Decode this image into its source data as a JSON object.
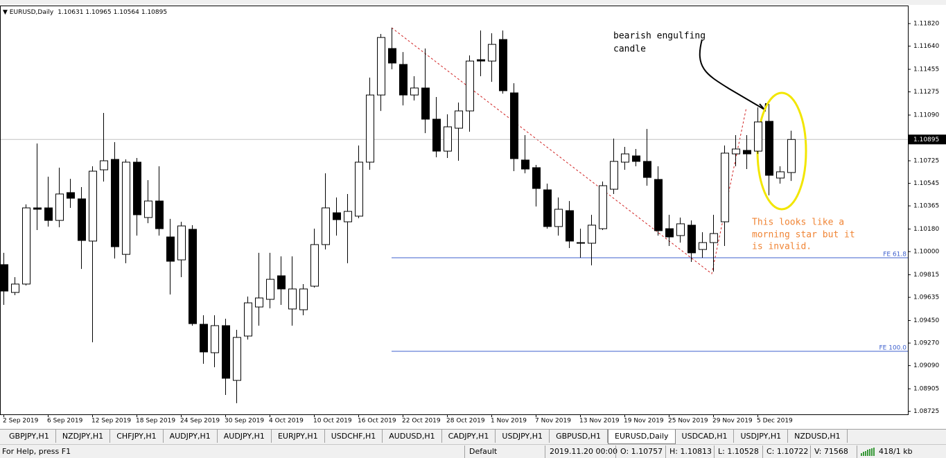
{
  "chart_data": {
    "type": "candlestick",
    "title": "EURUSD,Daily",
    "x": [
      "2 Sep 2019",
      null,
      null,
      null,
      "6 Sep 2019",
      null,
      null,
      null,
      "12 Sep 2019",
      null,
      null,
      null,
      "18 Sep 2019",
      null,
      null,
      null,
      "24 Sep 2019",
      null,
      null,
      null,
      "30 Sep 2019",
      null,
      null,
      null,
      "4 Oct 2019",
      null,
      null,
      null,
      "10 Oct 2019",
      null,
      null,
      null,
      "16 Oct 2019",
      null,
      null,
      null,
      "22 Oct 2019",
      null,
      null,
      null,
      "28 Oct 2019",
      null,
      null,
      null,
      "1 Nov 2019",
      null,
      null,
      null,
      "7 Nov 2019",
      null,
      null,
      null,
      "13 Nov 2019",
      null,
      null,
      null,
      "19 Nov 2019",
      null,
      null,
      null,
      "25 Nov 2019",
      null,
      null,
      null,
      "29 Nov 2019",
      null,
      null,
      null,
      "5 Dec 2019",
      null,
      null,
      null
    ],
    "open": [
      1.09896,
      1.09674,
      1.09741,
      1.10349,
      1.10349,
      1.10249,
      1.10471,
      1.10421,
      1.10084,
      1.10653,
      1.10736,
      1.09978,
      1.10714,
      1.10272,
      1.10404,
      1.10117,
      1.09934,
      1.10178,
      1.0942,
      1.09193,
      1.09409,
      1.08972,
      1.09326,
      1.09558,
      1.09619,
      1.09807,
      1.09542,
      1.09536,
      1.09724,
      1.10056,
      1.1031,
      1.10238,
      1.10283,
      1.10714,
      1.1125,
      1.11621,
      1.11494,
      1.1125,
      1.11306,
      1.11057,
      1.10802,
      1.10985,
      1.11123,
      1.11532,
      1.11521,
      1.11693,
      1.11267,
      1.10731,
      1.1067,
      1.10493,
      1.102,
      1.10327,
      1.10072,
      1.10067,
      1.10183,
      1.10498,
      1.10714,
      1.10764,
      1.1072,
      1.10576,
      1.10183,
      1.10128,
      1.10211,
      1.10017,
      1.10072,
      1.10238,
      1.1078,
      1.10808,
      1.10802,
      1.1104,
      1.10587,
      1.10631
    ],
    "high": [
      1.0999,
      1.09796,
      1.10377,
      1.10863,
      1.10598,
      1.1067,
      1.10581,
      1.10515,
      1.10681,
      1.11107,
      1.10874,
      1.10736,
      1.10747,
      1.1057,
      1.10681,
      1.10261,
      1.10238,
      1.10211,
      1.09492,
      1.09492,
      1.09464,
      1.09376,
      1.09641,
      1.0999,
      1.0999,
      1.09962,
      1.09962,
      1.09741,
      1.10183,
      1.10625,
      1.10432,
      1.1046,
      1.10847,
      1.11389,
      1.11737,
      1.11787,
      1.11593,
      1.114,
      1.11621,
      1.11234,
      1.11096,
      1.1119,
      1.11566,
      1.11765,
      1.11743,
      1.11765,
      1.11344,
      1.1093,
      1.10692,
      1.10543,
      1.10432,
      1.10404,
      1.10183,
      1.10294,
      1.10559,
      1.10902,
      1.10836,
      1.10819,
      1.10979,
      1.10681,
      1.10294,
      1.10272,
      1.10249,
      1.10155,
      1.10294,
      1.10847,
      1.1093,
      1.1093,
      1.11151,
      1.11178,
      1.10681,
      1.10965
    ],
    "low": [
      1.09575,
      1.09652,
      1.0973,
      1.10172,
      1.102,
      1.10194,
      1.10349,
      1.09862,
      1.09276,
      1.10559,
      1.09945,
      1.09907,
      1.10128,
      1.10227,
      1.10128,
      1.09658,
      1.09796,
      1.09409,
      1.09105,
      1.09077,
      1.08856,
      1.0879,
      1.09298,
      1.09409,
      1.09547,
      1.09575,
      1.09409,
      1.09492,
      1.09713,
      1.10017,
      1.10128,
      1.09907,
      1.10266,
      1.10653,
      1.11123,
      1.11455,
      1.11167,
      1.11206,
      1.10946,
      1.10753,
      1.10747,
      1.10725,
      1.10957,
      1.114,
      1.11355,
      1.11261,
      1.10642,
      1.10625,
      1.1036,
      1.10183,
      1.10128,
      1.10028,
      1.09951,
      1.0989,
      1.10172,
      1.1046,
      1.10653,
      1.10681,
      1.10526,
      1.10128,
      1.10045,
      1.10072,
      1.09918,
      1.09951,
      1.0984,
      1.10045,
      1.10681,
      1.10659,
      1.1078,
      1.10449,
      1.10543,
      1.10564
    ],
    "close": [
      1.09685,
      1.09741,
      1.10349,
      1.10338,
      1.10249,
      1.1046,
      1.10426,
      1.10089,
      1.10642,
      1.10725,
      1.10039,
      1.10714,
      1.10294,
      1.10404,
      1.10183,
      1.09923,
      1.10205,
      1.09425,
      1.09199,
      1.09409,
      1.08989,
      1.09315,
      1.09591,
      1.0963,
      1.09779,
      1.09702,
      1.09702,
      1.09702,
      1.10056,
      1.10349,
      1.10255,
      1.10321,
      1.10714,
      1.1125,
      1.11709,
      1.11505,
      1.1125,
      1.11306,
      1.11057,
      1.10802,
      1.10996,
      1.11123,
      1.11521,
      1.11521,
      1.11654,
      1.11284,
      1.10742,
      1.10659,
      1.10504,
      1.102,
      1.10338,
      1.10084,
      1.10067,
      1.10211,
      1.10526,
      1.1072,
      1.1078,
      1.1072,
      1.10592,
      1.10167,
      1.10117,
      1.10222,
      1.0999,
      1.10072,
      1.10144,
      1.10786,
      1.10819,
      1.1078,
      1.11035,
      1.10609,
      1.10637,
      1.10895
    ],
    "up_color": "#ffffff",
    "down_color": "#000000",
    "ylim": [
      1.08701,
      1.11964
    ],
    "yticks": [
      {
        "value": 1.1182,
        "label": "1.11820"
      },
      {
        "value": 1.1164,
        "label": "1.11640"
      },
      1.11455,
      1.11275,
      {
        "value": 1.1109,
        "label": "1.11090"
      },
      1.10725,
      1.10545,
      1.10365,
      {
        "value": 1.1018,
        "label": "1.10180"
      },
      {
        "value": 1.1,
        "label": "1.10000"
      },
      1.09815,
      1.09635,
      {
        "value": 1.0945,
        "label": "1.09450"
      },
      {
        "value": 1.0927,
        "label": "1.09270"
      },
      {
        "value": 1.0909,
        "label": "1.09090"
      },
      1.08905,
      1.08725
    ],
    "levels": [
      {
        "label": "FE 61.8",
        "value": 1.09951
      },
      {
        "label": "FE 100.0",
        "value": 1.09204
      }
    ],
    "annotations": {
      "engulfing": [
        "bearish engulfing",
        "candle"
      ],
      "morning_star": [
        "This looks like a",
        "morning star but it",
        "is invalid."
      ]
    }
  },
  "tabs": [
    "GBPJPY,H1",
    "NZDJPY,H1",
    "CHFJPY,H1",
    "AUDJPY,H1",
    "AUDJPY,H1",
    "EURJPY,H1",
    "USDCHF,H1",
    "AUDUSD,H1",
    "CADJPY,H1",
    "USDJPY,H1",
    "GBPUSD,H1",
    "EURUSD,Daily",
    "USDCAD,H1",
    "USDJPY,H1",
    "NZDUSD,H1"
  ],
  "status_bar": {
    "help": "For Help, press F1",
    "profile": "Default",
    "time": "2019.11.20 00:00",
    "open": "O: 1.10757",
    "high": "H: 1.10813",
    "low": "L: 1.10528",
    "close": "C: 1.10722",
    "volume": "V: 71568",
    "traffic": "418/1 kb"
  }
}
